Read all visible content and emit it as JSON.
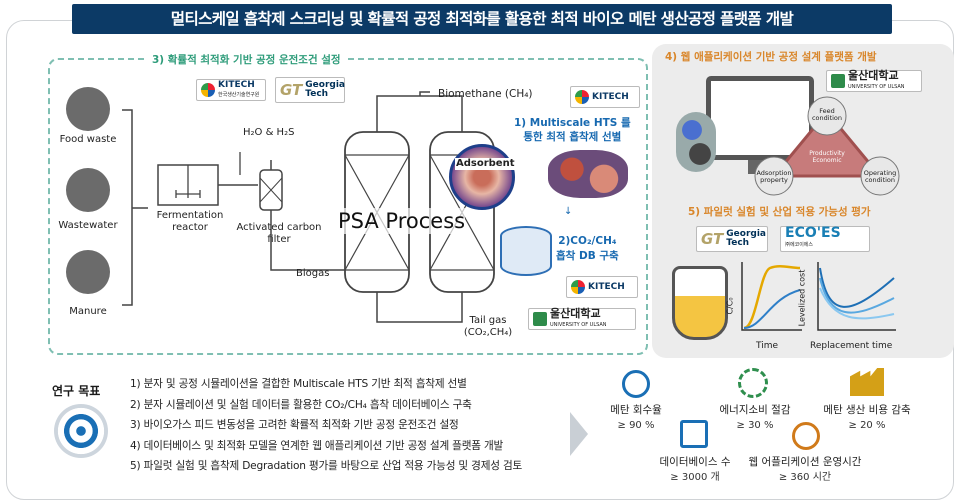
{
  "title": "멀티스케일 흡착제 스크리닝 및 확률적 공정 최적화를 활용한 최적 바이오 메탄 생산공정 플랫폼 개발",
  "sections": {
    "s3_title": "3) 확률적 최적화 기반 공정 운전조건 설정",
    "s1_title_line1": "1) Multiscale HTS 를",
    "s1_title_line2": "통한 최적 흡착제 선별",
    "s2_title_line1": "2)CO₂/CH₄",
    "s2_title_line2": "흡착 DB 구축",
    "s4_title": "4) 웹 애플리케이션 기반 공정 설계 플랫폼 개발",
    "s5_title": "5) 파일럿 실험 및 산업 적용 가능성 평가"
  },
  "process": {
    "food_waste": "Food waste",
    "wastewater": "Wastewater",
    "manure": "Manure",
    "fermentation": "Fermentation reactor",
    "h2o_h2s": "H₂O & H₂S",
    "carbon_filter": "Activated carbon filter",
    "biogas": "Biogas",
    "psa": "PSA Process",
    "adsorbent": "Adsorbent",
    "biomethane": "Biomethane (CH₄)",
    "tail_gas_line1": "Tail gas",
    "tail_gas_line2": "(CO₂,CH₄)"
  },
  "logos": {
    "kitech": "KITECH",
    "kitech_sub": "한국생산기술연구원",
    "gatech_line1": "Georgia",
    "gatech_line2": "Tech",
    "ulsan": "울산대학교",
    "ulsan_sub": "UNIVERSITY OF ULSAN",
    "ecoes": "ECO'ES",
    "ecoes_sub": "㈜에코이에스"
  },
  "triangle": {
    "feed": "Feed condition",
    "center": "Productivity Economic",
    "adsorption": "Adsorption property",
    "operating": "Operating condition"
  },
  "chart": {
    "ylabel_left": "C/C₀",
    "xlabel_left": "Time",
    "ylabel_right": "Levelized cost",
    "xlabel_right": "Replacement time"
  },
  "goals_label": "연구 목표",
  "goals": [
    "1) 분자 및 공정 시뮬레이션을 결합한 Multiscale HTS 기반 최적 흡착제 선별",
    "2) 분자 시뮬레이션 및 실험 데이터를 활용한 CO₂/CH₄ 흡착 데이터베이스 구축",
    "3) 바이오가스 피드 변동성을 고려한 확률적 최적화 기반 공정 운전조건 설정",
    "4) 데이터베이스 및 최적화 모델을 연계한 웹 애플리케이션 기반 공정 설계 플랫폼 개발",
    "5) 파일럿 실험 및 흡착제 Degradation 평가를 바탕으로 산업 적용 가능성 및 경제성 검토"
  ],
  "kpis": [
    {
      "label": "메탄 회수율",
      "value": "≥ 90 %",
      "icon": "molecule-icon",
      "color": "#1a6fb5"
    },
    {
      "label": "에너지소비 절감",
      "value": "≥ 30 %",
      "icon": "energy-cycle-icon",
      "color": "#2f8f4e"
    },
    {
      "label": "메탄 생산 비용 감축",
      "value": "≥ 20 %",
      "icon": "factory-icon",
      "color": "#d4a017"
    },
    {
      "label": "데이터베이스 수",
      "value": "≥ 3000 개",
      "icon": "disk-icon",
      "color": "#1a6fb5"
    },
    {
      "label": "웹 어플리케이션 운영시간",
      "value": "≥ 360 시간",
      "icon": "clock-icon",
      "color": "#d07a1a"
    }
  ],
  "colors": {
    "title_bg": "#0c3a66",
    "section_green": "#2e9c7a",
    "section_blue": "#1769b0",
    "section_orange": "#d9862a",
    "dashed_border": "#7fbfb2"
  }
}
